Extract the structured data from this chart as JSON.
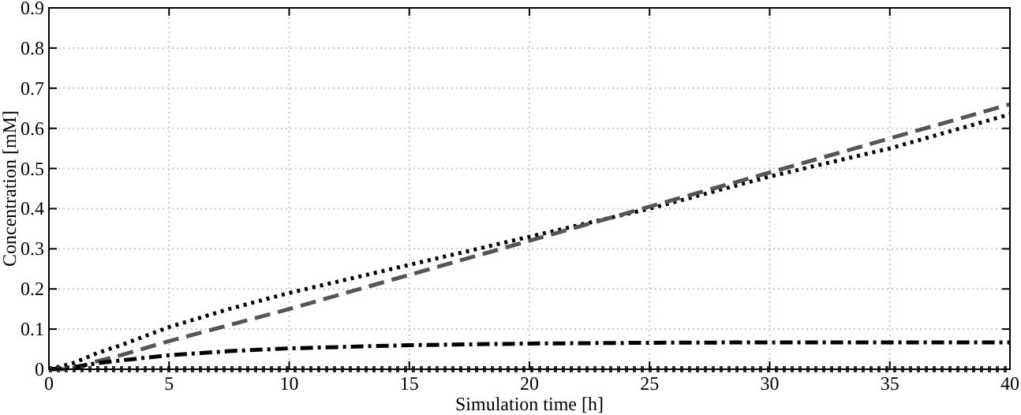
{
  "chart_data": {
    "type": "line",
    "xlabel": "Simulation time [h]",
    "ylabel": "Concentration [mM]",
    "xlim": [
      0,
      40
    ],
    "ylim": [
      0,
      0.9
    ],
    "xticks": [
      0,
      5,
      10,
      15,
      20,
      25,
      30,
      35,
      40
    ],
    "yticks": [
      0,
      0.1,
      0.2,
      0.3,
      0.4,
      0.5,
      0.6,
      0.7,
      0.8,
      0.9
    ],
    "grid": true,
    "marker": "none",
    "x": [
      0,
      1,
      2,
      3,
      5,
      7.5,
      10,
      15,
      20,
      25,
      30,
      35,
      40
    ],
    "series": [
      {
        "color": "#000000",
        "line_style": "dotted",
        "values": [
          0,
          0.015,
          0.04,
          0.06,
          0.105,
          0.15,
          0.19,
          0.26,
          0.33,
          0.4,
          0.48,
          0.55,
          0.635
        ]
      },
      {
        "color": "#555555",
        "line_style": "dashed",
        "values": [
          0,
          0,
          0.02,
          0.035,
          0.07,
          0.11,
          0.15,
          0.235,
          0.32,
          0.405,
          0.49,
          0.575,
          0.66
        ]
      },
      {
        "color": "#000000",
        "line_style": "dashed",
        "values": [
          0,
          0.005,
          0.015,
          0.022,
          0.035,
          0.045,
          0.052,
          0.06,
          0.064,
          0.066,
          0.067,
          0.067,
          0.067
        ]
      },
      {
        "color": "#333333",
        "line_style": "dotted",
        "values": [
          0,
          0,
          0,
          0,
          0,
          0,
          0,
          0,
          0,
          0,
          0,
          0,
          0
        ]
      }
    ]
  }
}
